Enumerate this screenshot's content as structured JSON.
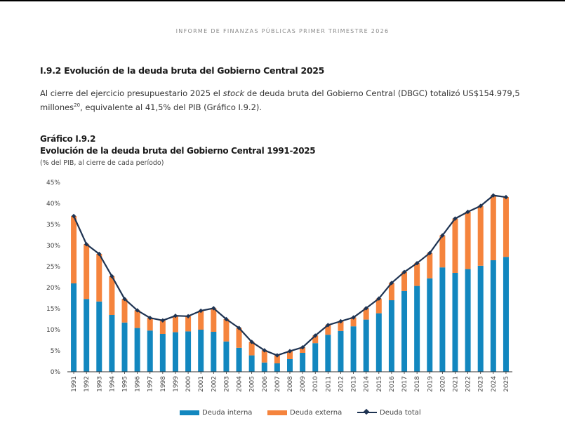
{
  "header": {
    "text": "INFORME DE FINANZAS PÚBLICAS PRIMER TRIMESTRE 2026"
  },
  "section": {
    "title": "I.9.2 Evolución de la deuda bruta del Gobierno Central 2025",
    "para_before": "Al cierre del ejercicio presupuestario 2025 el ",
    "para_em": "stock",
    "para_after": " de deuda bruta del Gobierno Central (DBGC) totalizó US$154.979,5 millones",
    "para_sup": "20",
    "para_end": ", equivalente al 41,5% del PIB (Gráfico I.9.2)."
  },
  "figure": {
    "label": "Gráfico I.9.2",
    "title": "Evolución de la deuda bruta del Gobierno Central 1991-2025",
    "subtitle": "(% del PIB, al cierre de cada período)"
  },
  "colors": {
    "interna": "#1287bf",
    "externa": "#f5843d",
    "total": "#1e3352"
  },
  "chart_data": {
    "type": "bar",
    "stacked": true,
    "categories": [
      "1991",
      "1992",
      "1993",
      "1994",
      "1995",
      "1996",
      "1997",
      "1998",
      "1999",
      "2000",
      "2001",
      "2002",
      "2003",
      "2004",
      "2005",
      "2006",
      "2007",
      "2008",
      "2009",
      "2010",
      "2011",
      "2012",
      "2013",
      "2014",
      "2015",
      "2016",
      "2017",
      "2018",
      "2019",
      "2020",
      "2021",
      "2022",
      "2023",
      "2024",
      "2025"
    ],
    "series": [
      {
        "name": "Deuda interna",
        "type": "bar",
        "values": [
          21.0,
          17.3,
          16.7,
          13.5,
          11.7,
          10.4,
          9.8,
          9.0,
          9.4,
          9.6,
          10.0,
          9.5,
          7.2,
          5.7,
          3.9,
          2.2,
          2.0,
          3.0,
          4.5,
          6.8,
          8.8,
          9.7,
          10.8,
          12.4,
          13.9,
          17.0,
          19.2,
          20.4,
          22.2,
          24.8,
          23.5,
          24.4,
          25.2,
          26.5,
          27.3
        ]
      },
      {
        "name": "Deuda externa",
        "type": "bar",
        "values": [
          16.0,
          13.0,
          11.3,
          9.2,
          5.6,
          4.2,
          3.0,
          3.2,
          3.9,
          3.6,
          4.5,
          5.6,
          5.3,
          4.7,
          3.2,
          2.9,
          1.9,
          1.9,
          1.3,
          1.8,
          2.3,
          2.3,
          2.1,
          2.7,
          3.5,
          4.1,
          4.5,
          5.4,
          6.0,
          7.6,
          12.9,
          13.6,
          14.2,
          15.4,
          14.2
        ]
      },
      {
        "name": "Deuda total",
        "type": "line",
        "values": [
          37.0,
          30.3,
          28.0,
          22.7,
          17.3,
          14.6,
          12.8,
          12.2,
          13.3,
          13.2,
          14.5,
          15.1,
          12.5,
          10.4,
          7.1,
          5.1,
          3.9,
          4.9,
          5.8,
          8.6,
          11.1,
          12.0,
          12.9,
          15.1,
          17.4,
          21.1,
          23.7,
          25.8,
          28.2,
          32.4,
          36.4,
          38.0,
          39.4,
          41.9,
          41.5
        ]
      }
    ],
    "yticks": [
      "0%",
      "5%",
      "10%",
      "15%",
      "20%",
      "25%",
      "30%",
      "35%",
      "40%",
      "45%"
    ],
    "ylim": [
      0,
      45
    ],
    "xlabel": "",
    "ylabel": "",
    "grid": false,
    "legend": "bottom"
  }
}
